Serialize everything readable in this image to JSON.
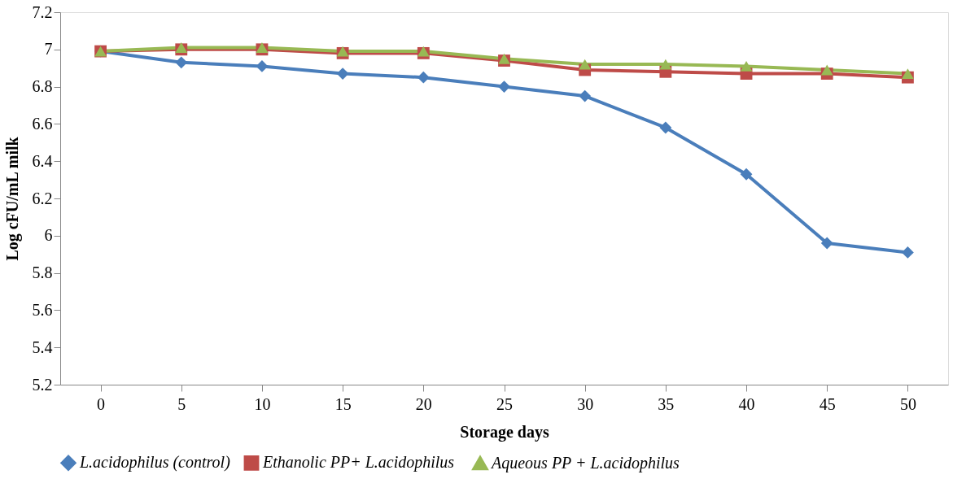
{
  "chart_data": {
    "type": "line",
    "xlabel": "Storage days",
    "ylabel": "Log cFU/mL  milk",
    "categories": [
      "0",
      "5",
      "10",
      "15",
      "20",
      "25",
      "30",
      "35",
      "40",
      "45",
      "50"
    ],
    "series": [
      {
        "name": "L.acidophilus (control)",
        "color": "#4a7ebb",
        "marker": "diamond",
        "values": [
          6.99,
          6.93,
          6.91,
          6.87,
          6.85,
          6.8,
          6.75,
          6.58,
          6.33,
          5.96,
          5.91
        ]
      },
      {
        "name": "Ethanolic  PP+ L.acidophilus",
        "color": "#be4b48",
        "marker": "square",
        "values": [
          6.99,
          7.0,
          7.0,
          6.98,
          6.98,
          6.94,
          6.89,
          6.88,
          6.87,
          6.87,
          6.85
        ]
      },
      {
        "name": "Aqueous PP + L.acidophilus",
        "color": "#98b954",
        "marker": "triangle",
        "values": [
          6.99,
          7.01,
          7.01,
          6.99,
          6.99,
          6.95,
          6.92,
          6.92,
          6.91,
          6.89,
          6.87
        ]
      }
    ],
    "ylim": [
      5.2,
      7.2
    ],
    "yticks": [
      5.2,
      5.4,
      5.6,
      5.8,
      6,
      6.2,
      6.4,
      6.6,
      6.8,
      7,
      7.2
    ],
    "grid": false,
    "legend": "bottom",
    "line_style": "solid"
  }
}
